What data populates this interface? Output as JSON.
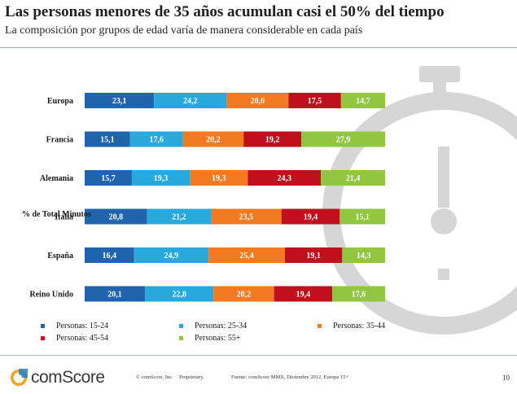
{
  "header": {
    "title": "Las personas menores de 35 años acumulan casi el 50% del tiempo",
    "subtitle": "La composición por grupos de edad varía de manera considerable en cada país"
  },
  "chart_data": {
    "type": "bar",
    "orientation": "horizontal",
    "stacked": true,
    "percent_stacked": true,
    "ylabel": "% de Total Minutos",
    "categories": [
      "Europa",
      "Francia",
      "Alemania",
      "Italia",
      "España",
      "Reino Unido"
    ],
    "series": [
      {
        "name": "Personas: 15-24",
        "color": "#1f64ad",
        "values": [
          23.1,
          15.1,
          15.7,
          20.8,
          16.4,
          20.1
        ],
        "labels": [
          "23,1",
          "15,1",
          "15,7",
          "20,8",
          "16,4",
          "20,1"
        ]
      },
      {
        "name": "Personas: 25-34",
        "color": "#27a9dd",
        "values": [
          24.2,
          17.6,
          19.3,
          21.2,
          24.9,
          22.8
        ],
        "labels": [
          "24,2",
          "17,6",
          "19,3",
          "21,2",
          "24,9",
          "22,8"
        ]
      },
      {
        "name": "Personas: 35-44",
        "color": "#f37a21",
        "values": [
          20.6,
          20.2,
          19.3,
          23.5,
          25.4,
          20.2
        ],
        "labels": [
          "20,6",
          "20,2",
          "19,3",
          "23,5",
          "25,4",
          "20,2"
        ]
      },
      {
        "name": "Personas: 45-54",
        "color": "#c0101d",
        "values": [
          17.5,
          19.2,
          24.3,
          19.4,
          19.1,
          19.4
        ],
        "labels": [
          "17,5",
          "19,2",
          "24,3",
          "19,4",
          "19,1",
          "19,4"
        ]
      },
      {
        "name": "Personas: 55+",
        "color": "#92c540",
        "values": [
          14.7,
          27.9,
          21.4,
          15.1,
          14.3,
          17.6
        ],
        "labels": [
          "14,7",
          "27,9",
          "21,4",
          "15,1",
          "14,3",
          "17,6"
        ]
      }
    ],
    "legend_position": "bottom",
    "grid": false
  },
  "footer": {
    "logo_text": "comScore",
    "copyright": "© comScore, Inc.",
    "proprietary": "Proprietary.",
    "source": "Fuente: comScore MMX, Diciembre 2012, Europa 15+",
    "page_number": "10"
  }
}
